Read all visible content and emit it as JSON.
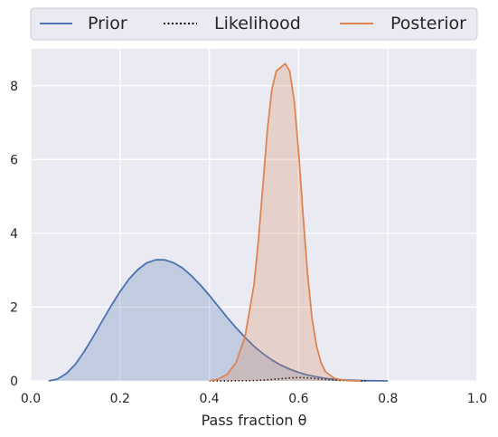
{
  "chart_data": {
    "type": "area",
    "xlabel": "Pass fraction θ",
    "ylabel": "",
    "xlim": [
      0.0,
      1.0
    ],
    "ylim": [
      0,
      9
    ],
    "x_ticks": [
      "0.0",
      "0.2",
      "0.4",
      "0.6",
      "0.8",
      "1.0"
    ],
    "y_ticks": [
      "0",
      "2",
      "4",
      "6",
      "8"
    ],
    "grid": true,
    "legend_position": "top, horizontal, outside above plot",
    "series": [
      {
        "name": "Prior",
        "style": "solid",
        "fill": true,
        "color": "#4c72b0",
        "x": [
          0.04,
          0.06,
          0.08,
          0.1,
          0.12,
          0.14,
          0.16,
          0.18,
          0.2,
          0.22,
          0.24,
          0.26,
          0.28,
          0.3,
          0.32,
          0.34,
          0.36,
          0.38,
          0.4,
          0.42,
          0.44,
          0.46,
          0.48,
          0.5,
          0.52,
          0.54,
          0.56,
          0.58,
          0.6,
          0.62,
          0.64,
          0.66,
          0.68,
          0.7,
          0.72,
          0.74,
          0.76,
          0.78,
          0.8
        ],
        "y": [
          0.0,
          0.05,
          0.2,
          0.45,
          0.8,
          1.2,
          1.62,
          2.03,
          2.42,
          2.76,
          3.02,
          3.2,
          3.28,
          3.28,
          3.2,
          3.06,
          2.85,
          2.6,
          2.32,
          2.02,
          1.72,
          1.44,
          1.18,
          0.94,
          0.74,
          0.57,
          0.43,
          0.32,
          0.23,
          0.16,
          0.11,
          0.07,
          0.045,
          0.028,
          0.016,
          0.009,
          0.004,
          0.002,
          0.0
        ]
      },
      {
        "name": "Likelihood",
        "style": "dotted",
        "fill": false,
        "color": "#000000",
        "x": [
          0.4,
          0.45,
          0.5,
          0.52,
          0.54,
          0.56,
          0.58,
          0.6,
          0.62,
          0.64,
          0.66,
          0.68,
          0.7,
          0.75
        ],
        "y": [
          0.0,
          0.002,
          0.01,
          0.02,
          0.04,
          0.06,
          0.08,
          0.09,
          0.08,
          0.06,
          0.04,
          0.02,
          0.01,
          0.0
        ]
      },
      {
        "name": "Posterior",
        "style": "solid",
        "fill": true,
        "color": "#dd8452",
        "x": [
          0.4,
          0.42,
          0.44,
          0.46,
          0.48,
          0.5,
          0.51,
          0.52,
          0.53,
          0.54,
          0.55,
          0.56,
          0.57,
          0.58,
          0.59,
          0.6,
          0.61,
          0.62,
          0.63,
          0.64,
          0.65,
          0.66,
          0.68,
          0.7,
          0.72,
          0.74
        ],
        "y": [
          0.0,
          0.05,
          0.18,
          0.5,
          1.2,
          2.6,
          3.8,
          5.3,
          6.8,
          7.9,
          8.4,
          8.5,
          8.6,
          8.4,
          7.6,
          6.2,
          4.5,
          2.9,
          1.7,
          0.95,
          0.5,
          0.25,
          0.07,
          0.02,
          0.005,
          0.0
        ]
      }
    ]
  }
}
